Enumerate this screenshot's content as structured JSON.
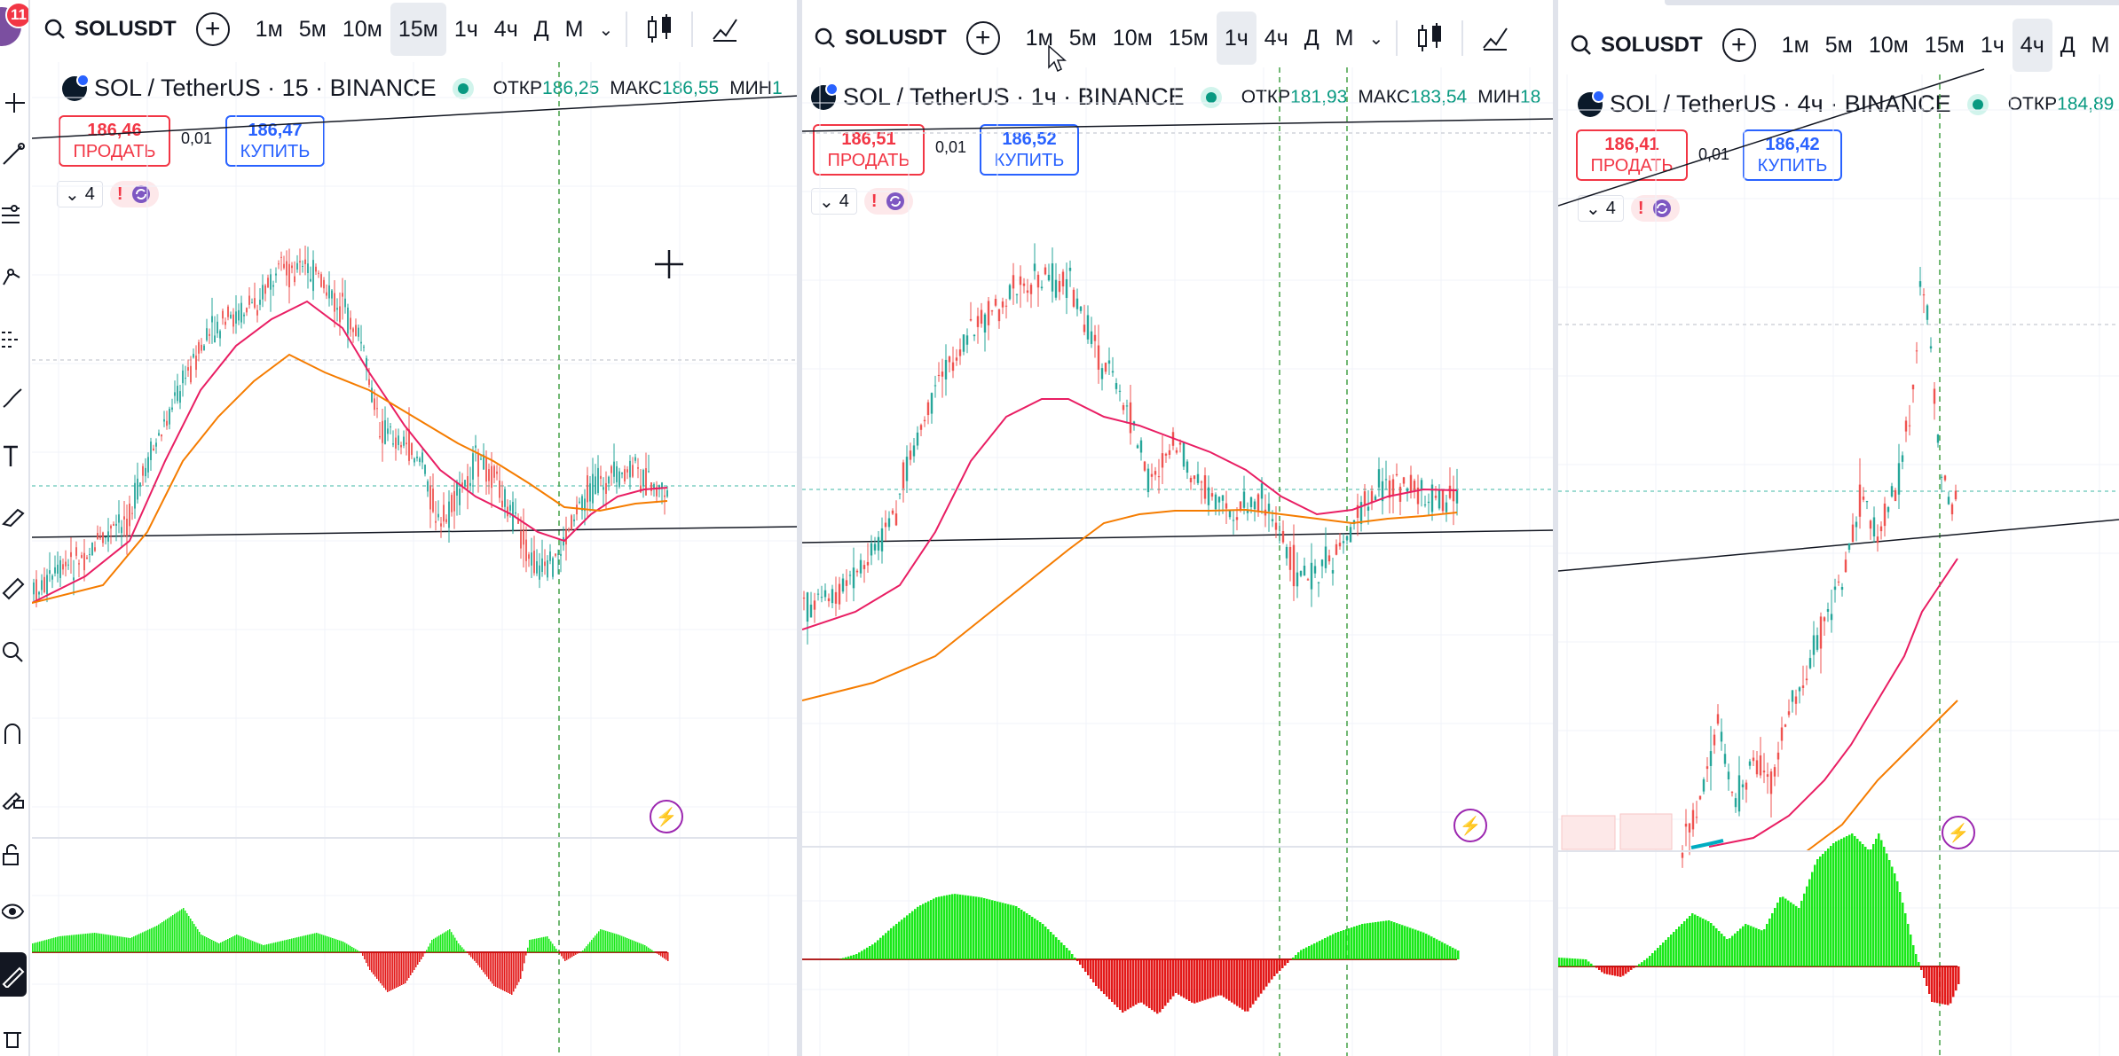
{
  "app": {
    "notifications": "11"
  },
  "toolbar_labels": {
    "add_symbol": "+",
    "chevron": "⌄"
  },
  "panes": [
    {
      "symbol": "SOLUSDT",
      "intervals": [
        "1м",
        "5м",
        "10м",
        "15м",
        "1ч",
        "4ч",
        "Д",
        "М"
      ],
      "selected_interval": "15м",
      "title": "SOL / TetherUS · 15 · BINANCE",
      "ohlc": {
        "open_label": "ОТКР",
        "open": "186,25",
        "high_label": "МАКС",
        "high": "186,55",
        "low_label": "МИН",
        "low": "1"
      },
      "sell": {
        "price": "186,46",
        "label": "ПРОДАТЬ"
      },
      "spread": "0,01",
      "buy": {
        "price": "186,47",
        "label": "КУПИТЬ"
      },
      "indicators_count": "4",
      "warn_icon": "!"
    },
    {
      "symbol": "SOLUSDT",
      "intervals": [
        "1м",
        "5м",
        "10м",
        "15м",
        "1ч",
        "4ч",
        "Д",
        "М"
      ],
      "selected_interval": "1ч",
      "title": "SOL / TetherUS · 1ч · BINANCE",
      "ohlc": {
        "open_label": "ОТКР",
        "open": "181,93",
        "high_label": "МАКС",
        "high": "183,54",
        "low_label": "МИН",
        "low": "18"
      },
      "sell": {
        "price": "186,51",
        "label": "ПРОДАТЬ"
      },
      "spread": "0,01",
      "buy": {
        "price": "186,52",
        "label": "КУПИТЬ"
      },
      "indicators_count": "4",
      "warn_icon": "!"
    },
    {
      "symbol": "SOLUSDT",
      "intervals": [
        "1м",
        "5м",
        "10м",
        "15м",
        "1ч",
        "4ч",
        "Д",
        "М"
      ],
      "selected_interval": "4ч",
      "title": "SOL / TetherUS · 4ч · BINANCE",
      "ohlc": {
        "open_label": "ОТКР",
        "open": "184,89"
      },
      "sell": {
        "price": "186,41",
        "label": "ПРОДАТЬ"
      },
      "spread": "0,01",
      "buy": {
        "price": "186,42",
        "label": "КУПИТЬ"
      },
      "indicators_count": "4",
      "warn_icon": "!"
    }
  ],
  "colors": {
    "up": "#26a69a",
    "down": "#ef5350",
    "ma_fast": "#e91e63",
    "ma_slow": "#f57c00",
    "hist_up": "#00e600",
    "hist_down": "#e00000",
    "sell": "#f23645",
    "buy": "#2962ff"
  }
}
